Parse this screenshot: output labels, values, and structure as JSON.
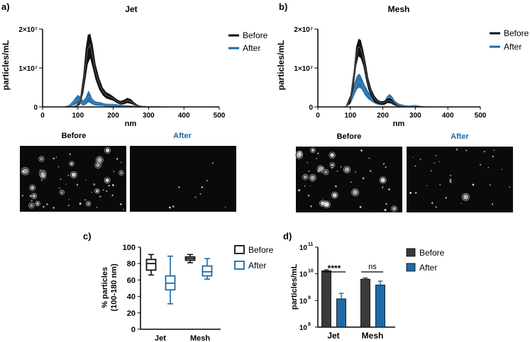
{
  "colors": {
    "before": "#111111",
    "after": "#1f6aa5",
    "bar_before": "#3a3a3a",
    "micro_bg": "#0a0a0a"
  },
  "panels": {
    "a": {
      "letter": "a)",
      "title": "Jet",
      "ylabel": "particles/mL",
      "xlabel": "nm",
      "yticks": [
        "2×10⁷",
        "1×10⁷",
        "0"
      ],
      "xticks": [
        "0",
        "100",
        "200",
        "300",
        "400",
        "500"
      ],
      "legend": [
        "Before",
        "After"
      ],
      "micro": {
        "before_label": "Before",
        "after_label": "After"
      }
    },
    "b": {
      "letter": "b)",
      "title": "Mesh",
      "ylabel": "particles/mL",
      "xlabel": "nm",
      "yticks": [
        "2×10⁷",
        "1×10⁷",
        "0"
      ],
      "xticks": [
        "0",
        "100",
        "200",
        "300",
        "400",
        "500"
      ],
      "legend": [
        "Before",
        "After"
      ],
      "micro": {
        "before_label": "Before",
        "after_label": "After"
      }
    },
    "c": {
      "letter": "c)",
      "ylabel_line1": "% particles",
      "ylabel_line2": "(100-180 nm)",
      "yticks": [
        "100",
        "80",
        "60",
        "40",
        "20",
        "0"
      ],
      "categories": [
        "Jet",
        "Mesh"
      ],
      "legend": [
        "Before",
        "After"
      ]
    },
    "d": {
      "letter": "d)",
      "ylabel": "particles/mL",
      "yticks": [
        "10",
        "10",
        "10",
        "10"
      ],
      "ytick_exps": [
        "11",
        "10",
        "9",
        "8"
      ],
      "categories": [
        "Jet",
        "Mesh"
      ],
      "legend": [
        "Before",
        "After"
      ],
      "sig_jet": "****",
      "sig_mesh": "ns"
    }
  },
  "chart_data": [
    {
      "type": "area",
      "title": "Jet",
      "xlabel": "nm",
      "ylabel": "particles/mL",
      "xlim": [
        0,
        500
      ],
      "ylim": [
        0,
        20000000
      ],
      "series": [
        {
          "name": "Before",
          "x": [
            80,
            95,
            105,
            115,
            122,
            128,
            135,
            142,
            150,
            160,
            170,
            180,
            190,
            200,
            210,
            220,
            230,
            240,
            250,
            260,
            270,
            280,
            290,
            300
          ],
          "mean": [
            0,
            200000,
            1000000,
            5500000,
            11000000,
            15000000,
            16000000,
            13000000,
            9000000,
            6000000,
            4000000,
            3000000,
            2600000,
            2200000,
            1500000,
            1000000,
            1200000,
            1600000,
            1400000,
            700000,
            300000,
            150000,
            50000,
            0
          ],
          "upper": [
            0,
            400000,
            1500000,
            8000000,
            15000000,
            18500000,
            18800000,
            16000000,
            11000000,
            7500000,
            5000000,
            3800000,
            3300000,
            2700000,
            2000000,
            1500000,
            1800000,
            2300000,
            2000000,
            1100000,
            500000,
            250000,
            100000,
            0
          ],
          "lower": [
            0,
            50000,
            500000,
            3500000,
            7500000,
            11000000,
            12500000,
            10000000,
            7000000,
            4500000,
            3000000,
            2200000,
            1900000,
            1600000,
            1000000,
            600000,
            700000,
            1000000,
            800000,
            400000,
            150000,
            50000,
            0,
            0
          ]
        },
        {
          "name": "After",
          "x": [
            60,
            75,
            85,
            95,
            100,
            108,
            115,
            122,
            130,
            135,
            140,
            148,
            155,
            165,
            175,
            185,
            195,
            205,
            220,
            240,
            260,
            280,
            300,
            330,
            360
          ],
          "mean": [
            0,
            300000,
            900000,
            1700000,
            2000000,
            1600000,
            900000,
            1500000,
            2800000,
            2200000,
            1500000,
            1000000,
            900000,
            800000,
            600000,
            500000,
            500000,
            500000,
            350000,
            250000,
            200000,
            150000,
            100000,
            50000,
            0
          ],
          "upper": [
            0,
            500000,
            1400000,
            2600000,
            3100000,
            2500000,
            1600000,
            2500000,
            4200000,
            3400000,
            2200000,
            1500000,
            1300000,
            1200000,
            900000,
            800000,
            800000,
            750000,
            550000,
            400000,
            300000,
            250000,
            180000,
            100000,
            0
          ],
          "lower": [
            0,
            0,
            300000,
            700000,
            1000000,
            800000,
            300000,
            600000,
            1200000,
            1000000,
            700000,
            400000,
            300000,
            300000,
            200000,
            150000,
            100000,
            100000,
            50000,
            0,
            0,
            0,
            0,
            0,
            0
          ]
        }
      ],
      "legend": [
        "Before",
        "After"
      ]
    },
    {
      "type": "area",
      "title": "Mesh",
      "xlabel": "nm",
      "ylabel": "particles/mL",
      "xlim": [
        0,
        500
      ],
      "ylim": [
        0,
        20000000
      ],
      "series": [
        {
          "name": "Before",
          "x": [
            85,
            100,
            110,
            118,
            125,
            132,
            140,
            148,
            155,
            165,
            175,
            185,
            195,
            205,
            215,
            225,
            235,
            245,
            260,
            280
          ],
          "mean": [
            0,
            2000000,
            7000000,
            13000000,
            15500000,
            15000000,
            12500000,
            9000000,
            6000000,
            3500000,
            2000000,
            1300000,
            1000000,
            1100000,
            1600000,
            1500000,
            800000,
            300000,
            100000,
            0
          ],
          "upper": [
            0,
            3000000,
            9000000,
            15500000,
            17500000,
            17200000,
            14500000,
            11000000,
            7500000,
            4500000,
            2800000,
            1800000,
            1400000,
            1600000,
            2200000,
            2100000,
            1200000,
            500000,
            150000,
            0
          ],
          "lower": [
            0,
            1000000,
            5000000,
            10500000,
            13000000,
            12500000,
            10500000,
            7000000,
            4500000,
            2500000,
            1200000,
            800000,
            600000,
            600000,
            1000000,
            900000,
            400000,
            100000,
            0,
            0
          ]
        },
        {
          "name": "After",
          "x": [
            85,
            100,
            110,
            120,
            128,
            135,
            145,
            155,
            165,
            175,
            185,
            195,
            205,
            212,
            220,
            228,
            238,
            250,
            265,
            280,
            300,
            320,
            340
          ],
          "mean": [
            0,
            1500000,
            4000000,
            6200000,
            6800000,
            6000000,
            4200000,
            3000000,
            2200000,
            1500000,
            1000000,
            800000,
            1000000,
            2000000,
            2600000,
            2200000,
            1000000,
            500000,
            300000,
            200000,
            300000,
            100000,
            0
          ],
          "upper": [
            0,
            2500000,
            5500000,
            8000000,
            8600000,
            7500000,
            5500000,
            4000000,
            3000000,
            2000000,
            1400000,
            1200000,
            1500000,
            2600000,
            3300000,
            2800000,
            1500000,
            800000,
            500000,
            350000,
            500000,
            200000,
            0
          ],
          "lower": [
            0,
            700000,
            2600000,
            4500000,
            5000000,
            4500000,
            3000000,
            2000000,
            1400000,
            900000,
            600000,
            400000,
            500000,
            1400000,
            1900000,
            1500000,
            500000,
            200000,
            100000,
            50000,
            100000,
            0,
            0
          ]
        }
      ],
      "legend": [
        "Before",
        "After"
      ]
    },
    {
      "type": "box",
      "ylabel": "% particles (100-180 nm)",
      "ylim": [
        0,
        100
      ],
      "categories": [
        "Jet",
        "Mesh"
      ],
      "series": [
        {
          "name": "Before",
          "boxes": [
            {
              "min": 66,
              "q1": 72,
              "median": 80,
              "q3": 85,
              "max": 91
            },
            {
              "min": 81,
              "q1": 84,
              "median": 86,
              "q3": 88,
              "max": 91
            }
          ]
        },
        {
          "name": "After",
          "boxes": [
            {
              "min": 31,
              "q1": 48,
              "median": 56,
              "q3": 65,
              "max": 89
            },
            {
              "min": 61,
              "q1": 65,
              "median": 70,
              "q3": 77,
              "max": 86
            }
          ]
        }
      ],
      "legend": [
        "Before",
        "After"
      ]
    },
    {
      "type": "bar",
      "ylabel": "particles/mL",
      "yscale": "log",
      "ylim": [
        100000000,
        100000000000
      ],
      "categories": [
        "Jet",
        "Mesh"
      ],
      "series": [
        {
          "name": "Before",
          "values": [
            13000000000,
            6300000000
          ],
          "errors": [
            1200000000,
            700000000
          ]
        },
        {
          "name": "After",
          "values": [
            1150000000,
            3800000000
          ],
          "errors": [
            700000000,
            1500000000
          ]
        }
      ],
      "annotations": [
        {
          "category": "Jet",
          "text": "****"
        },
        {
          "category": "Mesh",
          "text": "ns"
        }
      ],
      "legend": [
        "Before",
        "After"
      ]
    }
  ]
}
